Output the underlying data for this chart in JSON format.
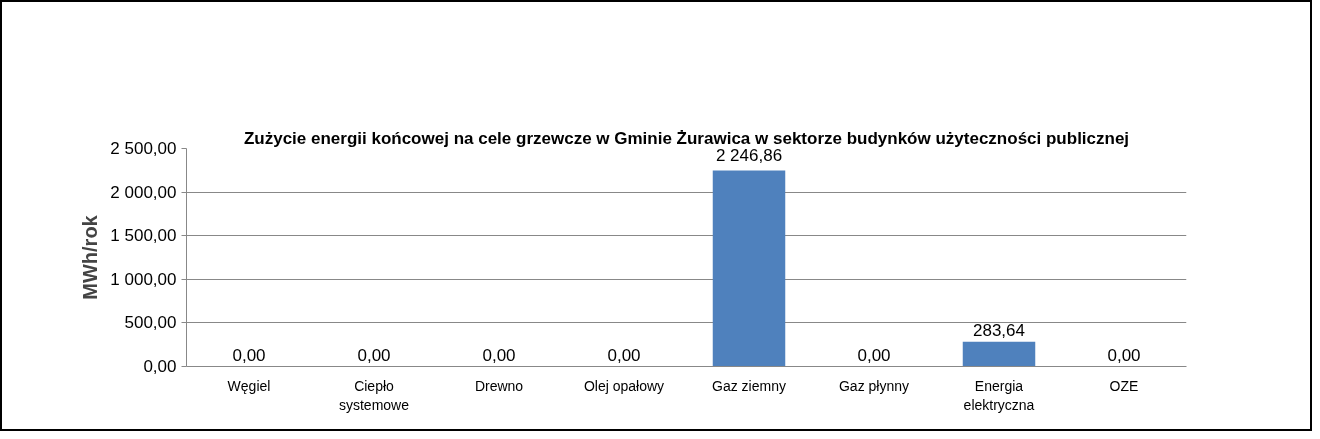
{
  "chart_data": {
    "type": "bar",
    "title": "Zużycie energii końcowej na cele grzewcze w Gminie Żurawica w sektorze budynków użyteczności publicznej",
    "ylabel": "MWh/rok",
    "categories": [
      "Węgiel",
      "Ciepło systemowe",
      "Drewno",
      "Olej opałowy",
      "Gaz ziemny",
      "Gaz płynny",
      "Energia elektryczna",
      "OZE"
    ],
    "values": [
      0,
      0,
      0,
      0,
      2246.86,
      0,
      283.64,
      0
    ],
    "color": "#4f81bd",
    "ylim": [
      0,
      2500
    ],
    "yticks": [
      {
        "value": 0,
        "label": "0,00"
      },
      {
        "value": 500,
        "label": "500,00"
      },
      {
        "value": 1000,
        "label": "1 000,00"
      },
      {
        "value": 1500,
        "label": "1 500,00"
      },
      {
        "value": 2000,
        "label": "2 000,00"
      },
      {
        "value": 2500,
        "label": "2 500,00"
      }
    ],
    "value_labels": [
      "0,00",
      "0,00",
      "0,00",
      "0,00",
      "2 246,86",
      "0,00",
      "283,64",
      "0,00"
    ],
    "grid": "y"
  }
}
